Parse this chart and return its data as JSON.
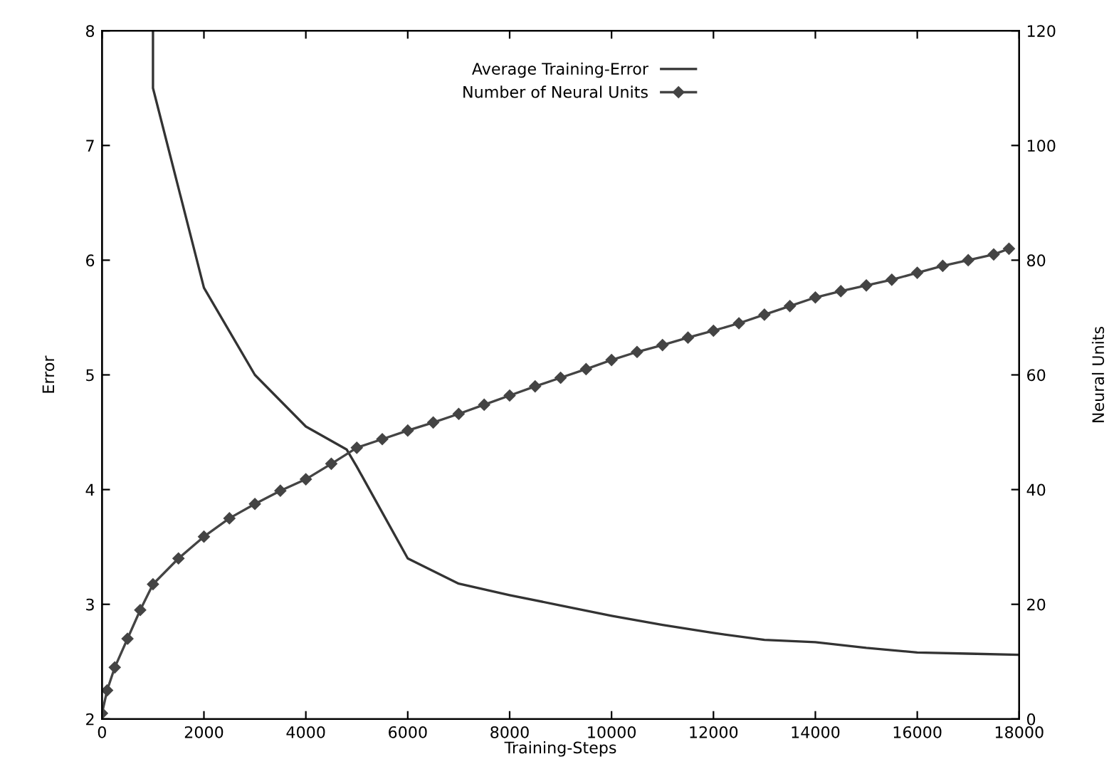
{
  "chart_data": {
    "type": "line",
    "xlabel": "Training-Steps",
    "ylabel": "Error",
    "y2label": "Neural Units",
    "xlim": [
      0,
      18000
    ],
    "xticks": [
      0,
      2000,
      4000,
      6000,
      8000,
      10000,
      12000,
      14000,
      16000,
      18000
    ],
    "ylim": [
      2,
      8
    ],
    "yticks": [
      2,
      3,
      4,
      5,
      6,
      7,
      8
    ],
    "y2lim": [
      0,
      120
    ],
    "y2ticks": [
      0,
      20,
      40,
      60,
      80,
      100,
      120
    ],
    "grid": false,
    "legend": "top",
    "series": [
      {
        "name": "Average Training-Error",
        "color": "#333333",
        "marker": "none",
        "x": [
          1000,
          1000,
          2000,
          3000,
          4000,
          4800,
          5000,
          6000,
          7000,
          8000,
          9000,
          10000,
          11000,
          12000,
          13000,
          14000,
          15000,
          16000,
          17000,
          18000
        ],
        "values": [
          8,
          7.5,
          5.76,
          5.0,
          4.55,
          4.35,
          4.2,
          3.4,
          3.18,
          3.08,
          2.99,
          2.9,
          2.82,
          2.75,
          2.69,
          2.67,
          2.62,
          2.58,
          2.57,
          2.56
        ]
      },
      {
        "name": "Number of Neural Units",
        "color": "#444444",
        "marker": "diamond",
        "axis": "y2",
        "x": [
          0,
          100,
          250,
          500,
          750,
          1000,
          1500,
          2000,
          2500,
          3000,
          3500,
          4000,
          4500,
          5000,
          5500,
          6000,
          6500,
          7000,
          7500,
          8000,
          8500,
          9000,
          9500,
          10000,
          10500,
          11000,
          11500,
          12000,
          12500,
          13000,
          13500,
          14000,
          14500,
          15000,
          15500,
          16000,
          16500,
          17000,
          17500,
          17800
        ],
        "values": [
          1,
          5,
          9,
          14,
          19,
          23.5,
          28,
          31.8,
          35,
          37.5,
          39.8,
          41.8,
          44.5,
          47.3,
          48.8,
          50.3,
          51.7,
          53.2,
          54.8,
          56.4,
          58,
          59.5,
          61,
          62.6,
          64,
          65.2,
          66.5,
          67.7,
          69,
          70.5,
          72,
          73.5,
          74.6,
          75.6,
          76.6,
          77.8,
          79,
          80,
          81,
          82
        ]
      }
    ]
  }
}
